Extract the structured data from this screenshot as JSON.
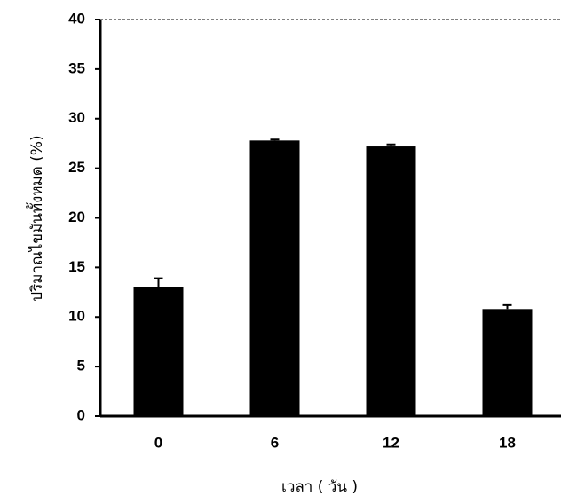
{
  "chart_data": {
    "type": "bar",
    "categories": [
      "0",
      "6",
      "12",
      "18"
    ],
    "values": [
      13.0,
      27.8,
      27.2,
      10.8
    ],
    "errors": [
      0.9,
      0.1,
      0.2,
      0.4
    ],
    "color": "#000000",
    "xlabel": "เวลา ( วัน )",
    "ylabel": "ปริมาณไขมันทั้งหมด (%)",
    "ylim": [
      0,
      40
    ],
    "yticks": [
      0,
      5,
      10,
      15,
      20,
      25,
      30,
      35,
      40
    ]
  }
}
